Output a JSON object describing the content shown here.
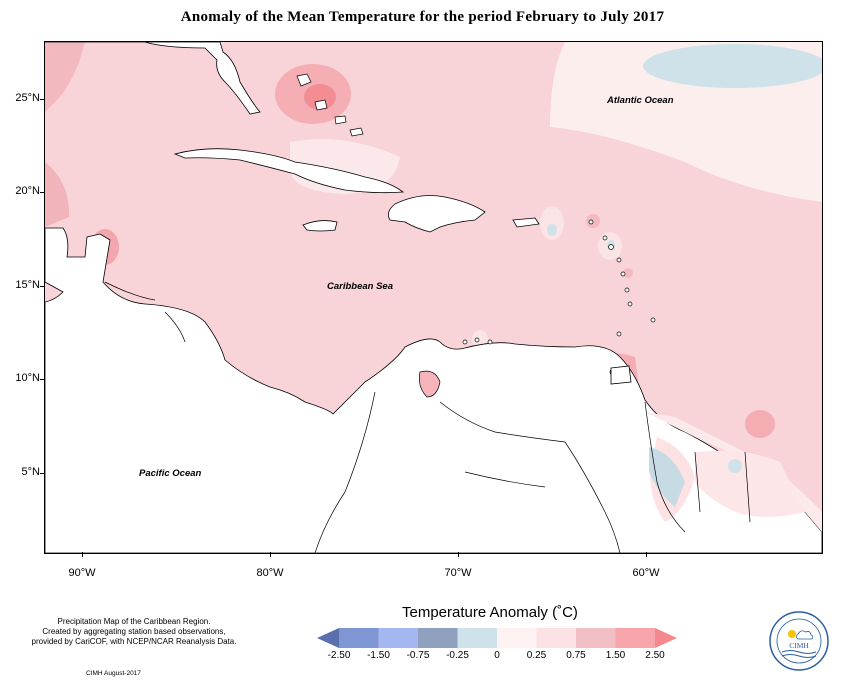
{
  "title": "Anomaly of the Mean Temperature for the period February to July 2017",
  "lat_labels": [
    "25°N",
    "20°N",
    "15°N",
    "10°N",
    "5°N"
  ],
  "lon_labels": [
    "90°W",
    "80°W",
    "70°W",
    "60°W"
  ],
  "regions": {
    "atlantic": "Atlantic Ocean",
    "caribbean": "Caribbean Sea",
    "pacific": "Pacific Ocean"
  },
  "credits": {
    "line1": "Precipitation Map of the Caribbean Region.",
    "line2": "Created by aggregating station based observations,",
    "line3": "provided by CariCOF, with NCEP/NCAR Reanalysis Data.",
    "date": "CIMH August-2017"
  },
  "legend": {
    "title": "Temperature Anomaly (˚C)",
    "ticks": [
      "-2.50",
      "-1.50",
      "-0.75",
      "-0.25",
      "0",
      "0.25",
      "0.75",
      "1.50",
      "2.50"
    ],
    "colors": [
      "#5a6fae",
      "#7e96d4",
      "#a5b7f0",
      "#8fa1be",
      "#cfe2ea",
      "#fff2f2",
      "#fde2e4",
      "#f2bfc4",
      "#f7a5aa",
      "#f4888e"
    ]
  },
  "logo": {
    "text": "CIMH"
  }
}
